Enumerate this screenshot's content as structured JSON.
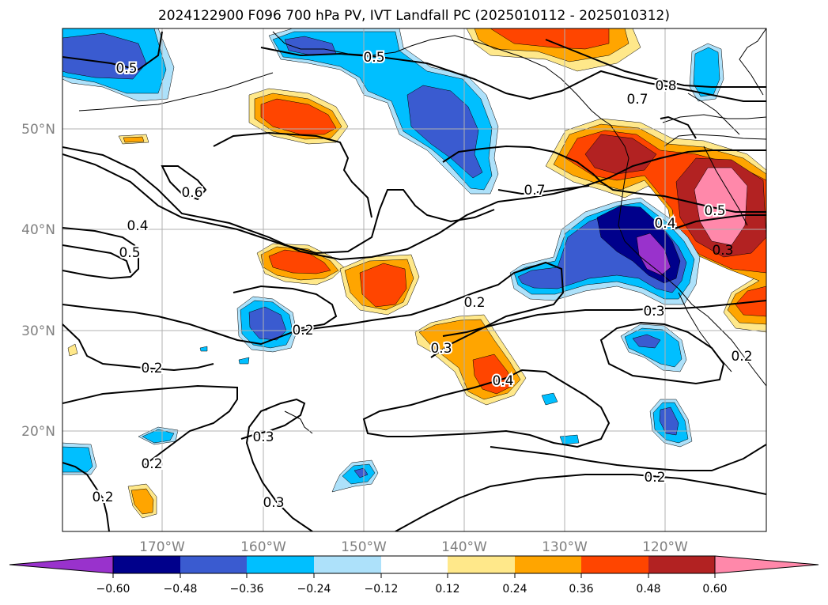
{
  "title": "2024122900 F096 700 hPa PV, IVT Landfall PC (2025010112 - 2025010312)",
  "lat_labels": [
    "50°N",
    "40°N",
    "30°N",
    "20°N"
  ],
  "lon_labels": [
    "170°W",
    "160°W",
    "150°W",
    "140°W",
    "130°W",
    "120°W"
  ],
  "contour_labels": [
    "0.5",
    "0.5",
    "0.8",
    "0.7",
    "0.6",
    "0.7",
    "0.4",
    "0.5",
    "0.5",
    "0.4",
    "0.3",
    "0.2",
    "0.2",
    "0.3",
    "0.3",
    "0.4",
    "0.2",
    "0.3",
    "0.2",
    "0.2",
    "0.3",
    "0.2",
    "0.2"
  ],
  "colorbar": {
    "tick_labels": [
      "−0.60",
      "−0.48",
      "−0.36",
      "−0.24",
      "−0.12",
      "0.12",
      "0.24",
      "0.36",
      "0.48",
      "0.60"
    ],
    "colors": [
      "#9932CC",
      "#00008B",
      "#3A5BD0",
      "#00BFFF",
      "#ADE1FA",
      "#FFFFFF",
      "#FFE88A",
      "#FFA500",
      "#FF4500",
      "#B22222",
      "#FF88AA"
    ]
  }
}
